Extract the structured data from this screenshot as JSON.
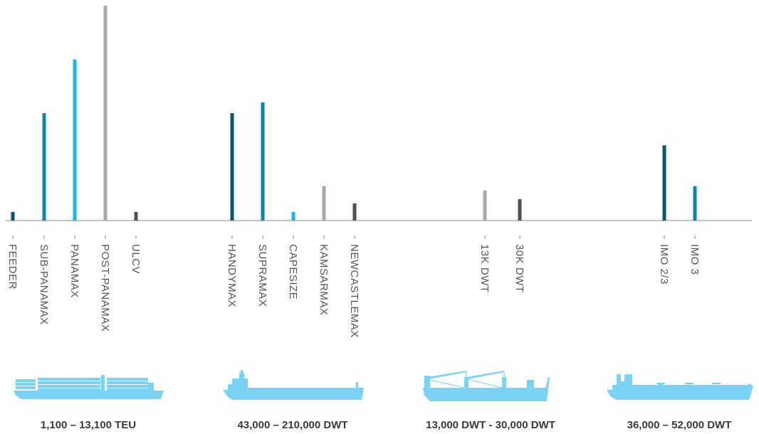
{
  "colors": {
    "dark_teal": "#0d5668",
    "teal": "#0a86a8",
    "cyan": "#19b6e6",
    "light_gray": "#a9a9a9",
    "dark_gray": "#505050",
    "ship": "#7ad3f5",
    "baseline": "#8a8a8a"
  },
  "chart_data": {
    "type": "bar",
    "ylim": [
      0,
      100
    ],
    "grid": false,
    "legend": "none",
    "categories": [
      "FEEDER",
      "SUB-PANAMAX",
      "PANAMAX",
      "POST-PANAMAX",
      "ULCV",
      "HANDYMAX",
      "SUPRAMAX",
      "CAPESIZE",
      "KAMSARMAX",
      "NEWCASTLEMAX",
      "13K DWT",
      "30K DWT",
      "IMO 2/3",
      "IMO 3"
    ],
    "values": [
      4,
      50,
      75,
      100,
      4,
      50,
      55,
      4,
      16,
      8,
      14,
      10,
      35,
      16
    ],
    "bar_colors": [
      "dark_teal",
      "teal",
      "cyan",
      "light_gray",
      "dark_gray",
      "dark_teal",
      "teal",
      "cyan",
      "light_gray",
      "dark_gray",
      "light_gray",
      "dark_gray",
      "dark_teal",
      "teal"
    ],
    "groups": [
      {
        "caption": "1,100 – 13,100 TEU",
        "ship_icon": "container-ship-icon"
      },
      {
        "caption": "43,000 – 210,000 DWT",
        "ship_icon": "bulk-carrier-icon"
      },
      {
        "caption": "13,000 DWT - 30,000 DWT",
        "ship_icon": "heavy-lift-ship-icon"
      },
      {
        "caption": "36,000 – 52,000 DWT",
        "ship_icon": "tanker-ship-icon"
      }
    ]
  }
}
